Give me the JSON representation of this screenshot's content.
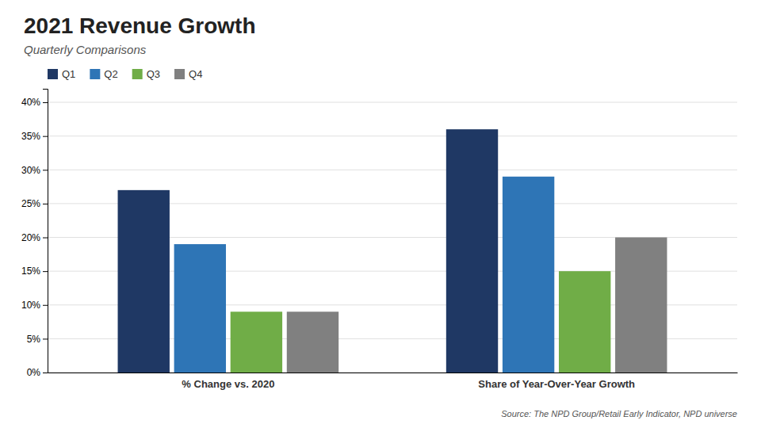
{
  "chart_data": {
    "type": "bar",
    "title": "2021 Revenue Growth",
    "subtitle": "Quarterly Comparisons",
    "annotation": "Source: The NPD Group/Retail Early Indicator, NPD universe",
    "categories": [
      "% Change vs. 2020",
      "Share of Year-Over-Year Growth"
    ],
    "series": [
      {
        "name": "Q1",
        "color": "#1f3864",
        "values": [
          0.27,
          0.36
        ]
      },
      {
        "name": "Q2",
        "color": "#2e75b6",
        "values": [
          0.19,
          0.29
        ]
      },
      {
        "name": "Q3",
        "color": "#70ad47",
        "values": [
          0.09,
          0.15
        ]
      },
      {
        "name": "Q4",
        "color": "#808080",
        "values": [
          0.09,
          0.2
        ]
      }
    ],
    "ylim": [
      0,
      0.42
    ],
    "yticks": [
      {
        "value": 0.0,
        "label": "0%"
      },
      {
        "value": 0.05,
        "label": "5%"
      },
      {
        "value": 0.1,
        "label": "10%"
      },
      {
        "value": 0.15,
        "label": "15%"
      },
      {
        "value": 0.2,
        "label": "20%"
      },
      {
        "value": 0.25,
        "label": "25%"
      },
      {
        "value": 0.3,
        "label": "30%"
      },
      {
        "value": 0.35,
        "label": "35%"
      },
      {
        "value": 0.4,
        "label": "40%"
      }
    ],
    "grid": true,
    "legend": "upper left"
  }
}
